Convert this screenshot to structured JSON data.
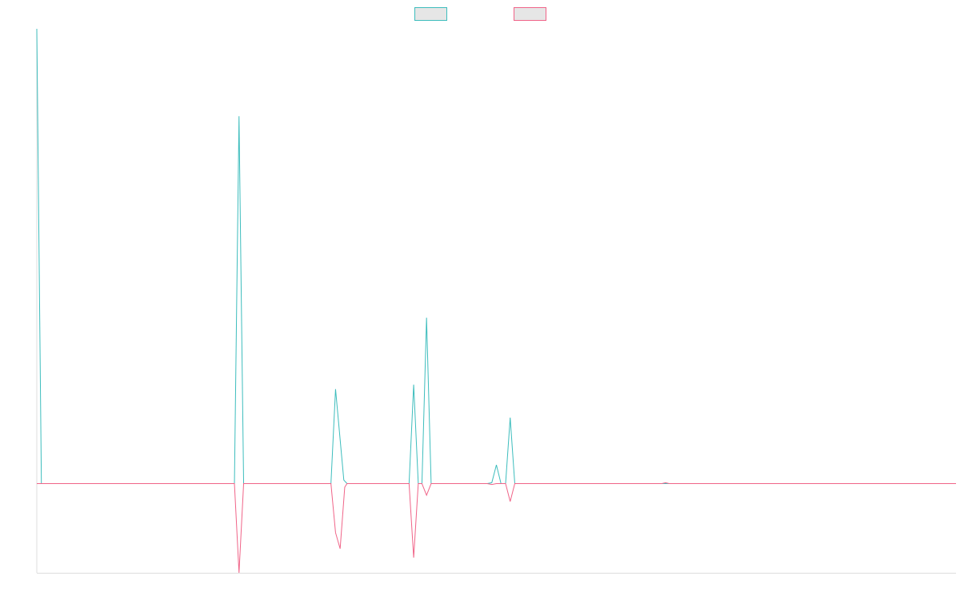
{
  "chart_data": {
    "type": "line",
    "title": "",
    "xlabel": "",
    "ylabel": "",
    "grid": false,
    "legend": "top-center",
    "x_range": [
      0,
      200
    ],
    "y_range": [
      -1.0,
      5.1
    ],
    "colors": {
      "series_a": "#3dbdbd",
      "series_b": "#f06488",
      "axis": "#dddddd",
      "legend_fill": "#e6e6e6"
    },
    "series": [
      {
        "name": "",
        "color": "#3dbdbd",
        "points": [
          [
            0,
            5.1
          ],
          [
            1,
            0
          ],
          [
            43,
            0
          ],
          [
            44,
            4.12
          ],
          [
            45,
            0
          ],
          [
            64,
            0
          ],
          [
            65,
            1.06
          ],
          [
            66.8,
            0.04
          ],
          [
            67.5,
            0
          ],
          [
            81,
            0
          ],
          [
            82,
            1.11
          ],
          [
            83,
            0
          ],
          [
            83.8,
            0
          ],
          [
            84.8,
            1.86
          ],
          [
            85.8,
            0
          ],
          [
            98,
            0
          ],
          [
            99,
            0.01
          ],
          [
            100,
            0.21
          ],
          [
            101,
            0
          ],
          [
            102,
            0
          ],
          [
            103,
            0.74
          ],
          [
            104,
            0
          ],
          [
            200,
            0
          ]
        ]
      },
      {
        "name": "",
        "color": "#f06488",
        "points": [
          [
            0,
            0
          ],
          [
            43,
            0
          ],
          [
            44,
            -1.0
          ],
          [
            45,
            0
          ],
          [
            64,
            0
          ],
          [
            65,
            -0.55
          ],
          [
            66,
            -0.73
          ],
          [
            67,
            -0.04
          ],
          [
            67.5,
            0
          ],
          [
            81,
            0
          ],
          [
            82,
            -0.83
          ],
          [
            83,
            0
          ],
          [
            83.8,
            0
          ],
          [
            84.8,
            -0.13
          ],
          [
            85.8,
            0
          ],
          [
            98,
            0
          ],
          [
            99,
            -0.01
          ],
          [
            100,
            0
          ],
          [
            102,
            0
          ],
          [
            103,
            -0.2
          ],
          [
            104,
            0
          ],
          [
            136,
            0
          ],
          [
            136.8,
            0.01
          ],
          [
            137.6,
            0
          ],
          [
            200,
            0
          ]
        ]
      }
    ]
  }
}
